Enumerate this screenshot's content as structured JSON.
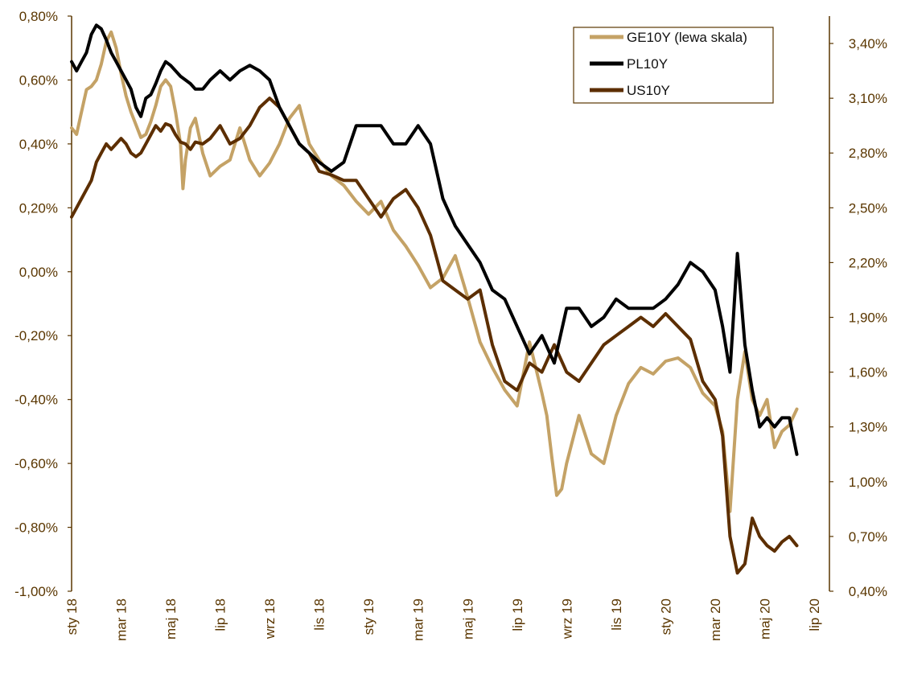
{
  "chart_data": {
    "type": "line",
    "title": "",
    "xlabel": "",
    "ylabel_left": "",
    "ylabel_right": "",
    "x_ticks": [
      "sty 18",
      "mar 18",
      "maj 18",
      "lip 18",
      "wrz 18",
      "lis 18",
      "sty 19",
      "mar 19",
      "maj 19",
      "lip 19",
      "wrz 19",
      "lis 19",
      "sty 20",
      "mar 20",
      "maj 20",
      "lip 20"
    ],
    "x_range": [
      0,
      30
    ],
    "y_left": {
      "ticks": [
        "0,80%",
        "0,60%",
        "0,40%",
        "0,20%",
        "0,00%",
        "-0,20%",
        "-0,40%",
        "-0,60%",
        "-0,80%",
        "-1,00%"
      ],
      "ylim": [
        -1.0,
        0.8
      ]
    },
    "y_right": {
      "ticks": [
        "3,40%",
        "3,10%",
        "2,80%",
        "2,50%",
        "2,20%",
        "1,90%",
        "1,60%",
        "1,30%",
        "1,00%",
        "0,70%",
        "0,40%"
      ],
      "ylim": [
        0.4,
        3.55
      ]
    },
    "colors": {
      "GE10Y": "#c4a266",
      "PL10Y": "#000000",
      "US10Y": "#5c2e00",
      "axis": "#5a3600"
    },
    "legend": {
      "placement": "top-right",
      "entries": [
        "GE10Y (lewa skala)",
        "PL10Y",
        "US10Y"
      ]
    },
    "series": [
      {
        "name": "GE10Y (lewa skala)",
        "axis": "left",
        "x": [
          0,
          0.2,
          0.4,
          0.6,
          0.8,
          1.0,
          1.2,
          1.4,
          1.6,
          1.8,
          2.0,
          2.2,
          2.4,
          2.6,
          2.8,
          3.0,
          3.2,
          3.4,
          3.6,
          3.8,
          4.0,
          4.2,
          4.4,
          4.5,
          4.6,
          4.8,
          5.0,
          5.3,
          5.6,
          6.0,
          6.4,
          6.8,
          7.2,
          7.6,
          8.0,
          8.4,
          8.8,
          9.2,
          9.6,
          10.0,
          10.5,
          11.0,
          11.5,
          12.0,
          12.5,
          13.0,
          13.5,
          14.0,
          14.5,
          15.0,
          15.5,
          16.0,
          16.5,
          17.0,
          17.5,
          18.0,
          18.5,
          19.0,
          19.2,
          19.4,
          19.6,
          19.8,
          20.0,
          20.5,
          21.0,
          21.5,
          22.0,
          22.5,
          23.0,
          23.5,
          24.0,
          24.5,
          25.0,
          25.5,
          26.0,
          26.3,
          26.6,
          26.9,
          27.2,
          27.5,
          27.8,
          28.1,
          28.4,
          28.7,
          29.0,
          29.3
        ],
        "values": [
          0.45,
          0.43,
          0.5,
          0.57,
          0.58,
          0.6,
          0.65,
          0.72,
          0.75,
          0.7,
          0.62,
          0.55,
          0.5,
          0.46,
          0.42,
          0.43,
          0.47,
          0.52,
          0.58,
          0.6,
          0.58,
          0.5,
          0.4,
          0.26,
          0.35,
          0.45,
          0.48,
          0.37,
          0.3,
          0.33,
          0.35,
          0.45,
          0.35,
          0.3,
          0.34,
          0.4,
          0.48,
          0.52,
          0.4,
          0.35,
          0.3,
          0.27,
          0.22,
          0.18,
          0.22,
          0.13,
          0.08,
          0.02,
          -0.05,
          -0.02,
          0.05,
          -0.08,
          -0.22,
          -0.3,
          -0.37,
          -0.42,
          -0.22,
          -0.38,
          -0.45,
          -0.58,
          -0.7,
          -0.68,
          -0.6,
          -0.45,
          -0.57,
          -0.6,
          -0.45,
          -0.35,
          -0.3,
          -0.32,
          -0.28,
          -0.27,
          -0.3,
          -0.38,
          -0.42,
          -0.5,
          -0.75,
          -0.4,
          -0.25,
          -0.4,
          -0.45,
          -0.4,
          -0.55,
          -0.5,
          -0.48,
          -0.43
        ]
      },
      {
        "name": "PL10Y",
        "axis": "right",
        "x": [
          0,
          0.2,
          0.4,
          0.6,
          0.8,
          1.0,
          1.2,
          1.4,
          1.6,
          1.8,
          2.0,
          2.2,
          2.4,
          2.6,
          2.8,
          3.0,
          3.2,
          3.4,
          3.6,
          3.8,
          4.0,
          4.2,
          4.4,
          4.6,
          4.8,
          5.0,
          5.3,
          5.6,
          6.0,
          6.4,
          6.8,
          7.2,
          7.6,
          8.0,
          8.4,
          8.8,
          9.2,
          9.6,
          10.0,
          10.5,
          11.0,
          11.5,
          12.0,
          12.5,
          13.0,
          13.5,
          14.0,
          14.5,
          15.0,
          15.5,
          16.0,
          16.5,
          17.0,
          17.5,
          18.0,
          18.5,
          19.0,
          19.5,
          20.0,
          20.5,
          21.0,
          21.5,
          22.0,
          22.5,
          23.0,
          23.5,
          24.0,
          24.5,
          25.0,
          25.5,
          26.0,
          26.3,
          26.6,
          26.9,
          27.2,
          27.5,
          27.8,
          28.1,
          28.4,
          28.7,
          29.0,
          29.3
        ],
        "values": [
          3.3,
          3.25,
          3.3,
          3.35,
          3.45,
          3.5,
          3.48,
          3.42,
          3.35,
          3.3,
          3.25,
          3.2,
          3.15,
          3.05,
          3.0,
          3.1,
          3.12,
          3.18,
          3.25,
          3.3,
          3.28,
          3.25,
          3.22,
          3.2,
          3.18,
          3.15,
          3.15,
          3.2,
          3.25,
          3.2,
          3.25,
          3.28,
          3.25,
          3.2,
          3.05,
          2.95,
          2.85,
          2.8,
          2.75,
          2.7,
          2.75,
          2.95,
          2.95,
          2.95,
          2.85,
          2.85,
          2.95,
          2.85,
          2.55,
          2.4,
          2.3,
          2.2,
          2.05,
          2.0,
          1.85,
          1.7,
          1.8,
          1.65,
          1.95,
          1.95,
          1.85,
          1.9,
          2.0,
          1.95,
          1.95,
          1.95,
          2.0,
          2.08,
          2.2,
          2.15,
          2.05,
          1.85,
          1.6,
          2.25,
          1.75,
          1.5,
          1.3,
          1.35,
          1.3,
          1.35,
          1.35,
          1.15
        ]
      },
      {
        "name": "US10Y",
        "axis": "right",
        "x": [
          0,
          0.2,
          0.4,
          0.6,
          0.8,
          1.0,
          1.2,
          1.4,
          1.6,
          1.8,
          2.0,
          2.2,
          2.4,
          2.6,
          2.8,
          3.0,
          3.2,
          3.4,
          3.6,
          3.8,
          4.0,
          4.2,
          4.4,
          4.6,
          4.8,
          5.0,
          5.3,
          5.6,
          6.0,
          6.4,
          6.8,
          7.2,
          7.6,
          8.0,
          8.4,
          8.8,
          9.2,
          9.6,
          10.0,
          10.5,
          11.0,
          11.5,
          12.0,
          12.5,
          13.0,
          13.5,
          14.0,
          14.5,
          15.0,
          15.5,
          16.0,
          16.5,
          17.0,
          17.5,
          18.0,
          18.5,
          19.0,
          19.5,
          20.0,
          20.5,
          21.0,
          21.5,
          22.0,
          22.5,
          23.0,
          23.5,
          24.0,
          24.5,
          25.0,
          25.5,
          26.0,
          26.3,
          26.6,
          26.9,
          27.2,
          27.5,
          27.8,
          28.1,
          28.4,
          28.7,
          29.0,
          29.3
        ],
        "values": [
          2.45,
          2.5,
          2.55,
          2.6,
          2.65,
          2.75,
          2.8,
          2.85,
          2.82,
          2.85,
          2.88,
          2.85,
          2.8,
          2.78,
          2.8,
          2.85,
          2.9,
          2.95,
          2.92,
          2.96,
          2.95,
          2.9,
          2.86,
          2.85,
          2.82,
          2.86,
          2.85,
          2.88,
          2.95,
          2.85,
          2.88,
          2.95,
          3.05,
          3.1,
          3.05,
          2.95,
          2.85,
          2.8,
          2.7,
          2.68,
          2.65,
          2.65,
          2.55,
          2.45,
          2.55,
          2.6,
          2.5,
          2.35,
          2.1,
          2.05,
          2.0,
          2.05,
          1.75,
          1.55,
          1.5,
          1.65,
          1.6,
          1.75,
          1.6,
          1.55,
          1.65,
          1.75,
          1.8,
          1.85,
          1.9,
          1.85,
          1.92,
          1.85,
          1.78,
          1.55,
          1.45,
          1.25,
          0.7,
          0.5,
          0.55,
          0.8,
          0.7,
          0.65,
          0.62,
          0.67,
          0.7,
          0.65
        ]
      }
    ]
  }
}
